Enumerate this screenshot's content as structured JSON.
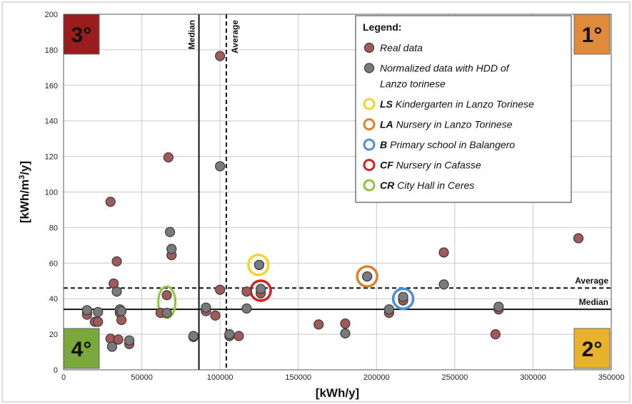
{
  "chart_data": {
    "type": "scatter",
    "xlabel": "[kWh/y]",
    "ylabel": "[kWh/m3/y]",
    "xlim": [
      0,
      350000
    ],
    "ylim": [
      0,
      200
    ],
    "x_ticks": [
      0,
      50000,
      100000,
      150000,
      200000,
      250000,
      300000,
      350000
    ],
    "y_ticks": [
      0,
      20,
      40,
      60,
      80,
      100,
      120,
      140,
      160,
      180,
      200
    ],
    "grid": true,
    "legend_position": "top-right",
    "legend_title": "Legend:",
    "legend_entries": [
      {
        "code": "",
        "text": "Real data",
        "marker": "filled",
        "color": "#a05a5a"
      },
      {
        "code": "",
        "text": "Normalized data with HDD of Lanzo torinese",
        "marker": "filled",
        "color": "#7a7a7a"
      },
      {
        "code": "LS",
        "text": "Kindergarten in Lanzo Torinese",
        "marker": "ring",
        "color": "#f2d52a"
      },
      {
        "code": "LA",
        "text": "Nursery in Lanzo Torinese",
        "marker": "ring",
        "color": "#d9822b"
      },
      {
        "code": "B",
        "text": "Primary school in Balangero",
        "marker": "ring",
        "color": "#4a90d9"
      },
      {
        "code": "CF",
        "text": "Nursery in Cafasse",
        "marker": "ring",
        "color": "#d42020"
      },
      {
        "code": "CR",
        "text": "City Hall in Ceres",
        "marker": "ring",
        "color": "#8cc63f"
      }
    ],
    "reference_lines": {
      "vertical_median": {
        "label": "Median",
        "x": 86500
      },
      "vertical_average": {
        "label": "Average",
        "x": 104000
      },
      "horizontal_average": {
        "label": "Average",
        "y": 46
      },
      "horizontal_median": {
        "label": "Median",
        "y": 34
      }
    },
    "quadrants": [
      {
        "label": "3°",
        "corner": "top-left",
        "color": "#9b1c1c",
        "text_color": "#111111"
      },
      {
        "label": "1°",
        "corner": "top-right",
        "color": "#e08a3c",
        "text_color": "#111111"
      },
      {
        "label": "4°",
        "corner": "bottom-left",
        "color": "#7aa83a",
        "text_color": "#111111"
      },
      {
        "label": "2°",
        "corner": "bottom-right",
        "color": "#e8b32a",
        "text_color": "#111111"
      }
    ],
    "series": [
      {
        "name": "Real data",
        "color": "#a05a5a",
        "points": [
          [
            15000,
            32
          ],
          [
            15000,
            31
          ],
          [
            20000,
            27
          ],
          [
            22000,
            27
          ],
          [
            30000,
            94.5
          ],
          [
            30000,
            17.5
          ],
          [
            32000,
            48.5
          ],
          [
            34000,
            61
          ],
          [
            35000,
            17
          ],
          [
            36000,
            32
          ],
          [
            37000,
            28
          ],
          [
            42000,
            14.5
          ],
          [
            62000,
            32
          ],
          [
            66000,
            42
          ],
          [
            67000,
            119.5
          ],
          [
            69000,
            64.5
          ],
          [
            83000,
            18.5
          ],
          [
            91000,
            33
          ],
          [
            97000,
            30.5
          ],
          [
            100000,
            176.5
          ],
          [
            100000,
            45
          ],
          [
            106000,
            19
          ],
          [
            112000,
            19
          ],
          [
            117000,
            44
          ],
          [
            125000,
            59
          ],
          [
            126000,
            43
          ],
          [
            163000,
            25.5
          ],
          [
            180000,
            26
          ],
          [
            194000,
            52.5
          ],
          [
            208000,
            32
          ],
          [
            217000,
            39
          ],
          [
            243000,
            66
          ],
          [
            276000,
            20
          ],
          [
            278000,
            34
          ],
          [
            329000,
            74
          ]
        ]
      },
      {
        "name": "Normalized data with HDD of Lanzo torinese",
        "color": "#7a7a7a",
        "points": [
          [
            15000,
            33.5
          ],
          [
            22000,
            32.5
          ],
          [
            31000,
            13
          ],
          [
            34000,
            44
          ],
          [
            36000,
            34
          ],
          [
            37000,
            33
          ],
          [
            42000,
            16.5
          ],
          [
            66000,
            32
          ],
          [
            68000,
            77.5
          ],
          [
            69000,
            68
          ],
          [
            83000,
            19
          ],
          [
            91000,
            35
          ],
          [
            100000,
            114.5
          ],
          [
            106000,
            20
          ],
          [
            117000,
            34.5
          ],
          [
            125000,
            59
          ],
          [
            126000,
            45.5
          ],
          [
            180000,
            20.5
          ],
          [
            194000,
            52.5
          ],
          [
            208000,
            34
          ],
          [
            217000,
            41
          ],
          [
            243000,
            48
          ],
          [
            278000,
            35.5
          ]
        ]
      }
    ],
    "highlights": [
      {
        "code": "LS",
        "x": 124500,
        "y": 59,
        "color": "#f2d52a"
      },
      {
        "code": "LA",
        "x": 194000,
        "y": 52.5,
        "color": "#d9822b"
      },
      {
        "code": "B",
        "x": 217000,
        "y": 40,
        "color": "#4a90d9"
      },
      {
        "code": "CF",
        "x": 126000,
        "y": 44.5,
        "color": "#d42020"
      },
      {
        "code": "CR",
        "x": 66000,
        "y": 38,
        "color": "#8cc63f",
        "elongated": true
      }
    ]
  }
}
